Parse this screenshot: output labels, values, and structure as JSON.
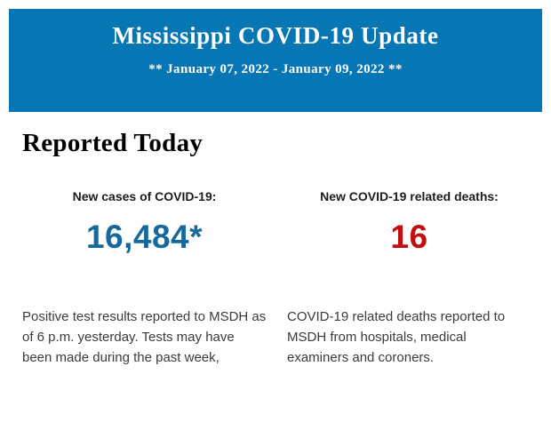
{
  "header": {
    "title": "Mississippi COVID-19 Update",
    "date_range": "** January 07, 2022 - January 09, 2022 **",
    "background_color": "#0676b4",
    "text_color": "#ffffff"
  },
  "main": {
    "section_title": "Reported Today",
    "stats": [
      {
        "label": "New cases of COVID-19:",
        "value": "16,484*",
        "value_color": "#17699d",
        "description": "Positive test results reported to MSDH as of 6 p.m. yesterday. Tests may have been made during the past week,"
      },
      {
        "label": "New COVID-19 related deaths:",
        "value": "16",
        "value_color": "#c20e0e",
        "description": "COVID-19 related deaths reported to MSDH from hospitals, medical examiners and coroners."
      }
    ]
  }
}
